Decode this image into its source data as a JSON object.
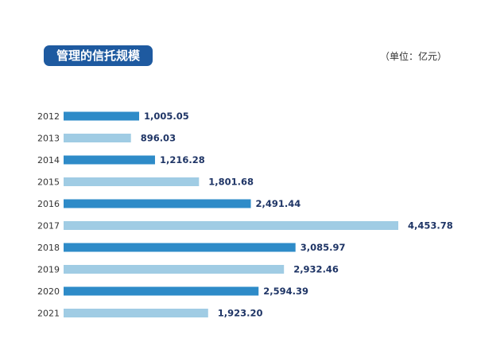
{
  "chart_data": {
    "type": "bar",
    "orientation": "horizontal",
    "title": "管理的信托规模",
    "unit_label": "（单位：亿元）",
    "categories": [
      "2012",
      "2013",
      "2014",
      "2015",
      "2016",
      "2017",
      "2018",
      "2019",
      "2020",
      "2021"
    ],
    "values": [
      1005.05,
      896.03,
      1216.28,
      1801.68,
      2491.44,
      4453.78,
      3085.97,
      2932.46,
      2594.39,
      1923.2
    ],
    "value_labels": [
      "1,005.05",
      "896.03",
      "1,216.28",
      "1,801.68",
      "2,491.44",
      "4,453.78",
      "3,085.97",
      "2,932.46",
      "2,594.39",
      "1,923.20"
    ],
    "colors": {
      "dark": "#2e8bc8",
      "light": "#a0cce4",
      "title_bg": "#1e5aa0",
      "label": "#1f3566"
    },
    "grid": false,
    "legend": "none"
  }
}
